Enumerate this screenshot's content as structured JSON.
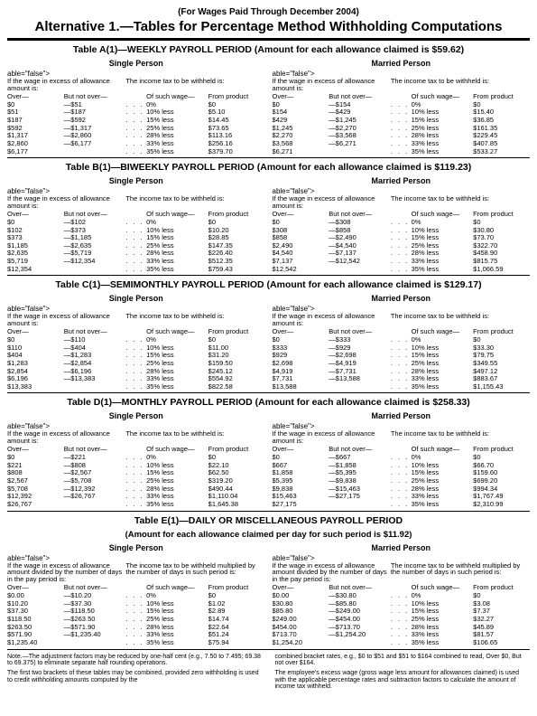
{
  "header_note": "(For Wages Paid Through December 2004)",
  "main_title": "Alternative 1.—Tables for Percentage Method Withholding Computations",
  "status_labels": {
    "single": "Single Person",
    "married": "Married Person"
  },
  "left_head": "If the wage in excess of allowance amount is:",
  "right_head": "The income tax to be withheld is:",
  "left_head_daily": "If the wage in excess of allowance amount divided by the number of days in the pay period is:",
  "right_head_daily": "The income tax to be withheld multiplied by the number of days in such period is:",
  "col_over": "Over—",
  "col_notover": "But not over—",
  "col_pct": "Of such wage—",
  "col_prod": "From product",
  "tables": [
    {
      "title": "Table A(1)—WEEKLY PAYROLL PERIOD (Amount for each allowance claimed is $59.62)",
      "single": [
        [
          "$0",
          "—$51",
          "0%",
          "$0"
        ],
        [
          "$51",
          "—$187",
          "10% less",
          "$5.10"
        ],
        [
          "$187",
          "—$592",
          "15% less",
          "$14.45"
        ],
        [
          "$592",
          "—$1,317",
          "25% less",
          "$73.65"
        ],
        [
          "$1,317",
          "—$2,860",
          "28% less",
          "$113.16"
        ],
        [
          "$2,860",
          "—$6,177",
          "33% less",
          "$256.16"
        ],
        [
          "$6,177",
          "",
          "35% less",
          "$379.70"
        ]
      ],
      "married": [
        [
          "$0",
          "—$154",
          "0%",
          "$0"
        ],
        [
          "$154",
          "—$429",
          "10% less",
          "$15.40"
        ],
        [
          "$429",
          "—$1,245",
          "15% less",
          "$36.85"
        ],
        [
          "$1,245",
          "—$2,270",
          "25% less",
          "$161.35"
        ],
        [
          "$2,270",
          "—$3,568",
          "28% less",
          "$229.45"
        ],
        [
          "$3,568",
          "—$6,271",
          "33% less",
          "$407.85"
        ],
        [
          "$6,271",
          "",
          "35% less",
          "$533.27"
        ]
      ]
    },
    {
      "title": "Table B(1)—BIWEEKLY PAYROLL PERIOD (Amount for each allowance claimed is $119.23)",
      "single": [
        [
          "$0",
          "—$102",
          "0%",
          "$0"
        ],
        [
          "$102",
          "—$373",
          "10% less",
          "$10.20"
        ],
        [
          "$373",
          "—$1,185",
          "15% less",
          "$28.85"
        ],
        [
          "$1,185",
          "—$2,635",
          "25% less",
          "$147.35"
        ],
        [
          "$2,635",
          "—$5,719",
          "28% less",
          "$226.40"
        ],
        [
          "$5,719",
          "—$12,354",
          "33% less",
          "$512.35"
        ],
        [
          "$12,354",
          "",
          "35% less",
          "$759.43"
        ]
      ],
      "married": [
        [
          "$0",
          "—$308",
          "0%",
          "$0"
        ],
        [
          "$308",
          "—$858",
          "10% less",
          "$30.80"
        ],
        [
          "$858",
          "—$2,490",
          "15% less",
          "$73.70"
        ],
        [
          "$2,490",
          "—$4,540",
          "25% less",
          "$322.70"
        ],
        [
          "$4,540",
          "—$7,137",
          "28% less",
          "$458.90"
        ],
        [
          "$7,137",
          "—$12,542",
          "33% less",
          "$815.75"
        ],
        [
          "$12,542",
          "",
          "35% less",
          "$1,066.59"
        ]
      ]
    },
    {
      "title": "Table C(1)—SEMIMONTHLY PAYROLL PERIOD (Amount for each allowance claimed is $129.17)",
      "single": [
        [
          "$0",
          "—$110",
          "0%",
          "$0"
        ],
        [
          "$110",
          "—$404",
          "10% less",
          "$11.00"
        ],
        [
          "$404",
          "—$1,283",
          "15% less",
          "$31.20"
        ],
        [
          "$1,283",
          "—$2,854",
          "25% less",
          "$159.50"
        ],
        [
          "$2,854",
          "—$6,196",
          "28% less",
          "$245.12"
        ],
        [
          "$6,196",
          "—$13,383",
          "33% less",
          "$554.92"
        ],
        [
          "$13,383",
          "",
          "35% less",
          "$822.58"
        ]
      ],
      "married": [
        [
          "$0",
          "—$333",
          "0%",
          "$0"
        ],
        [
          "$333",
          "—$929",
          "10% less",
          "$33.30"
        ],
        [
          "$929",
          "—$2,698",
          "15% less",
          "$79.75"
        ],
        [
          "$2,698",
          "—$4,919",
          "25% less",
          "$349.55"
        ],
        [
          "$4,919",
          "—$7,731",
          "28% less",
          "$497.12"
        ],
        [
          "$7,731",
          "—$13,588",
          "33% less",
          "$883.67"
        ],
        [
          "$13,588",
          "",
          "35% less",
          "$1,155.43"
        ]
      ]
    },
    {
      "title": "Table D(1)—MONTHLY PAYROLL PERIOD (Amount for each allowance claimed is $258.33)",
      "single": [
        [
          "$0",
          "—$221",
          "0%",
          "$0"
        ],
        [
          "$221",
          "—$808",
          "10% less",
          "$22.10"
        ],
        [
          "$808",
          "—$2,567",
          "15% less",
          "$62.50"
        ],
        [
          "$2,567",
          "—$5,708",
          "25% less",
          "$319.20"
        ],
        [
          "$5,708",
          "—$12,392",
          "28% less",
          "$490.44"
        ],
        [
          "$12,392",
          "—$26,767",
          "33% less",
          "$1,110.04"
        ],
        [
          "$26,767",
          "",
          "35% less",
          "$1,645.38"
        ]
      ],
      "married": [
        [
          "$0",
          "—$667",
          "0%",
          "$0"
        ],
        [
          "$667",
          "—$1,858",
          "10% less",
          "$66.70"
        ],
        [
          "$1,858",
          "—$5,395",
          "15% less",
          "$159.60"
        ],
        [
          "$5,395",
          "—$9,838",
          "25% less",
          "$699.20"
        ],
        [
          "$9,838",
          "—$15,463",
          "28% less",
          "$994.34"
        ],
        [
          "$15,463",
          "—$27,175",
          "33% less",
          "$1,767.49"
        ],
        [
          "$27,175",
          "",
          "35% less",
          "$2,310.99"
        ]
      ]
    },
    {
      "title": "Table E(1)—DAILY OR MISCELLANEOUS PAYROLL PERIOD",
      "subtitle": "(Amount for each allowance claimed per day for such period is $11.92)",
      "daily": true,
      "single": [
        [
          "$0.00",
          "—$10.20",
          "0%",
          "$0"
        ],
        [
          "$10.20",
          "—$37.30",
          "10% less",
          "$1.02"
        ],
        [
          "$37.30",
          "—$118.50",
          "15% less",
          "$2.89"
        ],
        [
          "$118.50",
          "—$263.50",
          "25% less",
          "$14.74"
        ],
        [
          "$263.50",
          "—$571.90",
          "28% less",
          "$22.64"
        ],
        [
          "$571.90",
          "—$1,235.40",
          "33% less",
          "$51.24"
        ],
        [
          "$1,235.40",
          "",
          "35% less",
          "$75.94"
        ]
      ],
      "married": [
        [
          "$0.00",
          "—$30.80",
          "0%",
          "$0"
        ],
        [
          "$30.80",
          "—$85.80",
          "10% less",
          "$3.08"
        ],
        [
          "$85.80",
          "—$249.00",
          "15% less",
          "$7.37"
        ],
        [
          "$249.00",
          "—$454.00",
          "25% less",
          "$32.27"
        ],
        [
          "$454.00",
          "—$713.70",
          "28% less",
          "$45.89"
        ],
        [
          "$713.70",
          "—$1,254.20",
          "33% less",
          "$81.57"
        ],
        [
          "$1,254.20",
          "",
          "35% less",
          "$106.65"
        ]
      ]
    }
  ],
  "footnotes": {
    "left1": "Note.—The adjustment factors may be reduced by one-half cent (e.g., 7.50 to 7.495; 69.38 to 69.375) to eliminate separate half rounding operations.",
    "left2": "The first two brackets of these tables may be combined, provided zero withholding is used to credit withholding amounts computed by the",
    "right1": "combined bracket rates, e.g., $0 to $51 and $51 to $164 combined to read, Over $0, But not over $164.",
    "right2": "The employee's excess wage (gross wage less amount for allowances claimed) is used with the applicable percentage rates and subtraction factors to calculate the amount of income tax withheld."
  }
}
